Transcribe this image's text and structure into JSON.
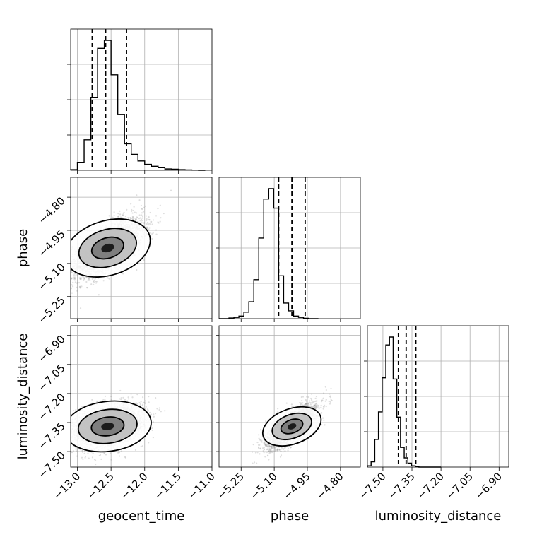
{
  "chart_data": {
    "type": "corner",
    "parameters": [
      "geocent_time",
      "phase",
      "luminosity_distance"
    ],
    "ticks": {
      "geocent_time": [
        -13.0,
        -12.5,
        -12.0,
        -11.5,
        -11.0
      ],
      "phase": [
        -5.25,
        -5.1,
        -4.95,
        -4.8
      ],
      "luminosity_distance": [
        -7.5,
        -7.35,
        -7.2,
        -7.05,
        -6.9
      ]
    },
    "tick_labels": {
      "geocent_time": [
        "−13.0",
        "−12.5",
        "−12.0",
        "−11.5",
        "−11.0"
      ],
      "phase": [
        "−5.25",
        "−5.10",
        "−4.95",
        "−4.80"
      ],
      "luminosity_distance": [
        "−7.50",
        "−7.35",
        "−7.20",
        "−7.05",
        "−6.90"
      ]
    },
    "ranges": {
      "geocent_time": [
        -13.1,
        -11.0
      ],
      "phase": [
        -5.35,
        -4.71
      ],
      "luminosity_distance": [
        -7.58,
        -6.85
      ]
    },
    "quantiles": {
      "geocent_time": [
        -12.78,
        -12.58,
        -12.27
      ],
      "phase": [
        -5.08,
        -5.02,
        -4.96
      ],
      "luminosity_distance": [
        -7.42,
        -7.38,
        -7.33
      ]
    },
    "histograms": {
      "geocent_time": {
        "bin_start": -13.1,
        "bin_width": 0.1,
        "counts": [
          0.005,
          0.06,
          0.23,
          0.55,
          0.92,
          0.98,
          0.72,
          0.42,
          0.2,
          0.12,
          0.07,
          0.045,
          0.03,
          0.02,
          0.01,
          0.008,
          0.005,
          0.003,
          0.001,
          0.0
        ]
      },
      "phase": {
        "bin_start": -5.35,
        "bin_width": 0.0225,
        "counts": [
          0.0,
          0.0,
          0.005,
          0.01,
          0.02,
          0.05,
          0.13,
          0.3,
          0.62,
          0.92,
          1.0,
          0.85,
          0.33,
          0.12,
          0.06,
          0.02,
          0.01,
          0.003,
          0.0,
          0.0
        ]
      },
      "luminosity_distance": {
        "bin_start": -7.58,
        "bin_width": 0.019,
        "counts": [
          0.01,
          0.04,
          0.21,
          0.42,
          0.68,
          0.93,
          0.99,
          0.67,
          0.38,
          0.15,
          0.07,
          0.03,
          0.01,
          0.003,
          0.0,
          0.0,
          0.0,
          0.0,
          0.0,
          0.0
        ]
      }
    },
    "scatter": {
      "phase|geocent_time": {
        "center": [
          -12.55,
          -5.03
        ],
        "spread": [
          0.26,
          0.065
        ],
        "corr": 0.65
      },
      "luminosity_distance|geocent_time": {
        "center": [
          -12.55,
          -7.37
        ],
        "spread": [
          0.26,
          0.055
        ],
        "corr": 0.35
      },
      "luminosity_distance|phase": {
        "center": [
          -5.02,
          -7.37
        ],
        "spread": [
          0.055,
          0.055
        ],
        "corr": 0.75
      }
    },
    "grid": true,
    "legend": "none",
    "colors": {
      "line": "#000000",
      "points": "#8c8c8c",
      "grid": "#b0b0b0"
    }
  }
}
